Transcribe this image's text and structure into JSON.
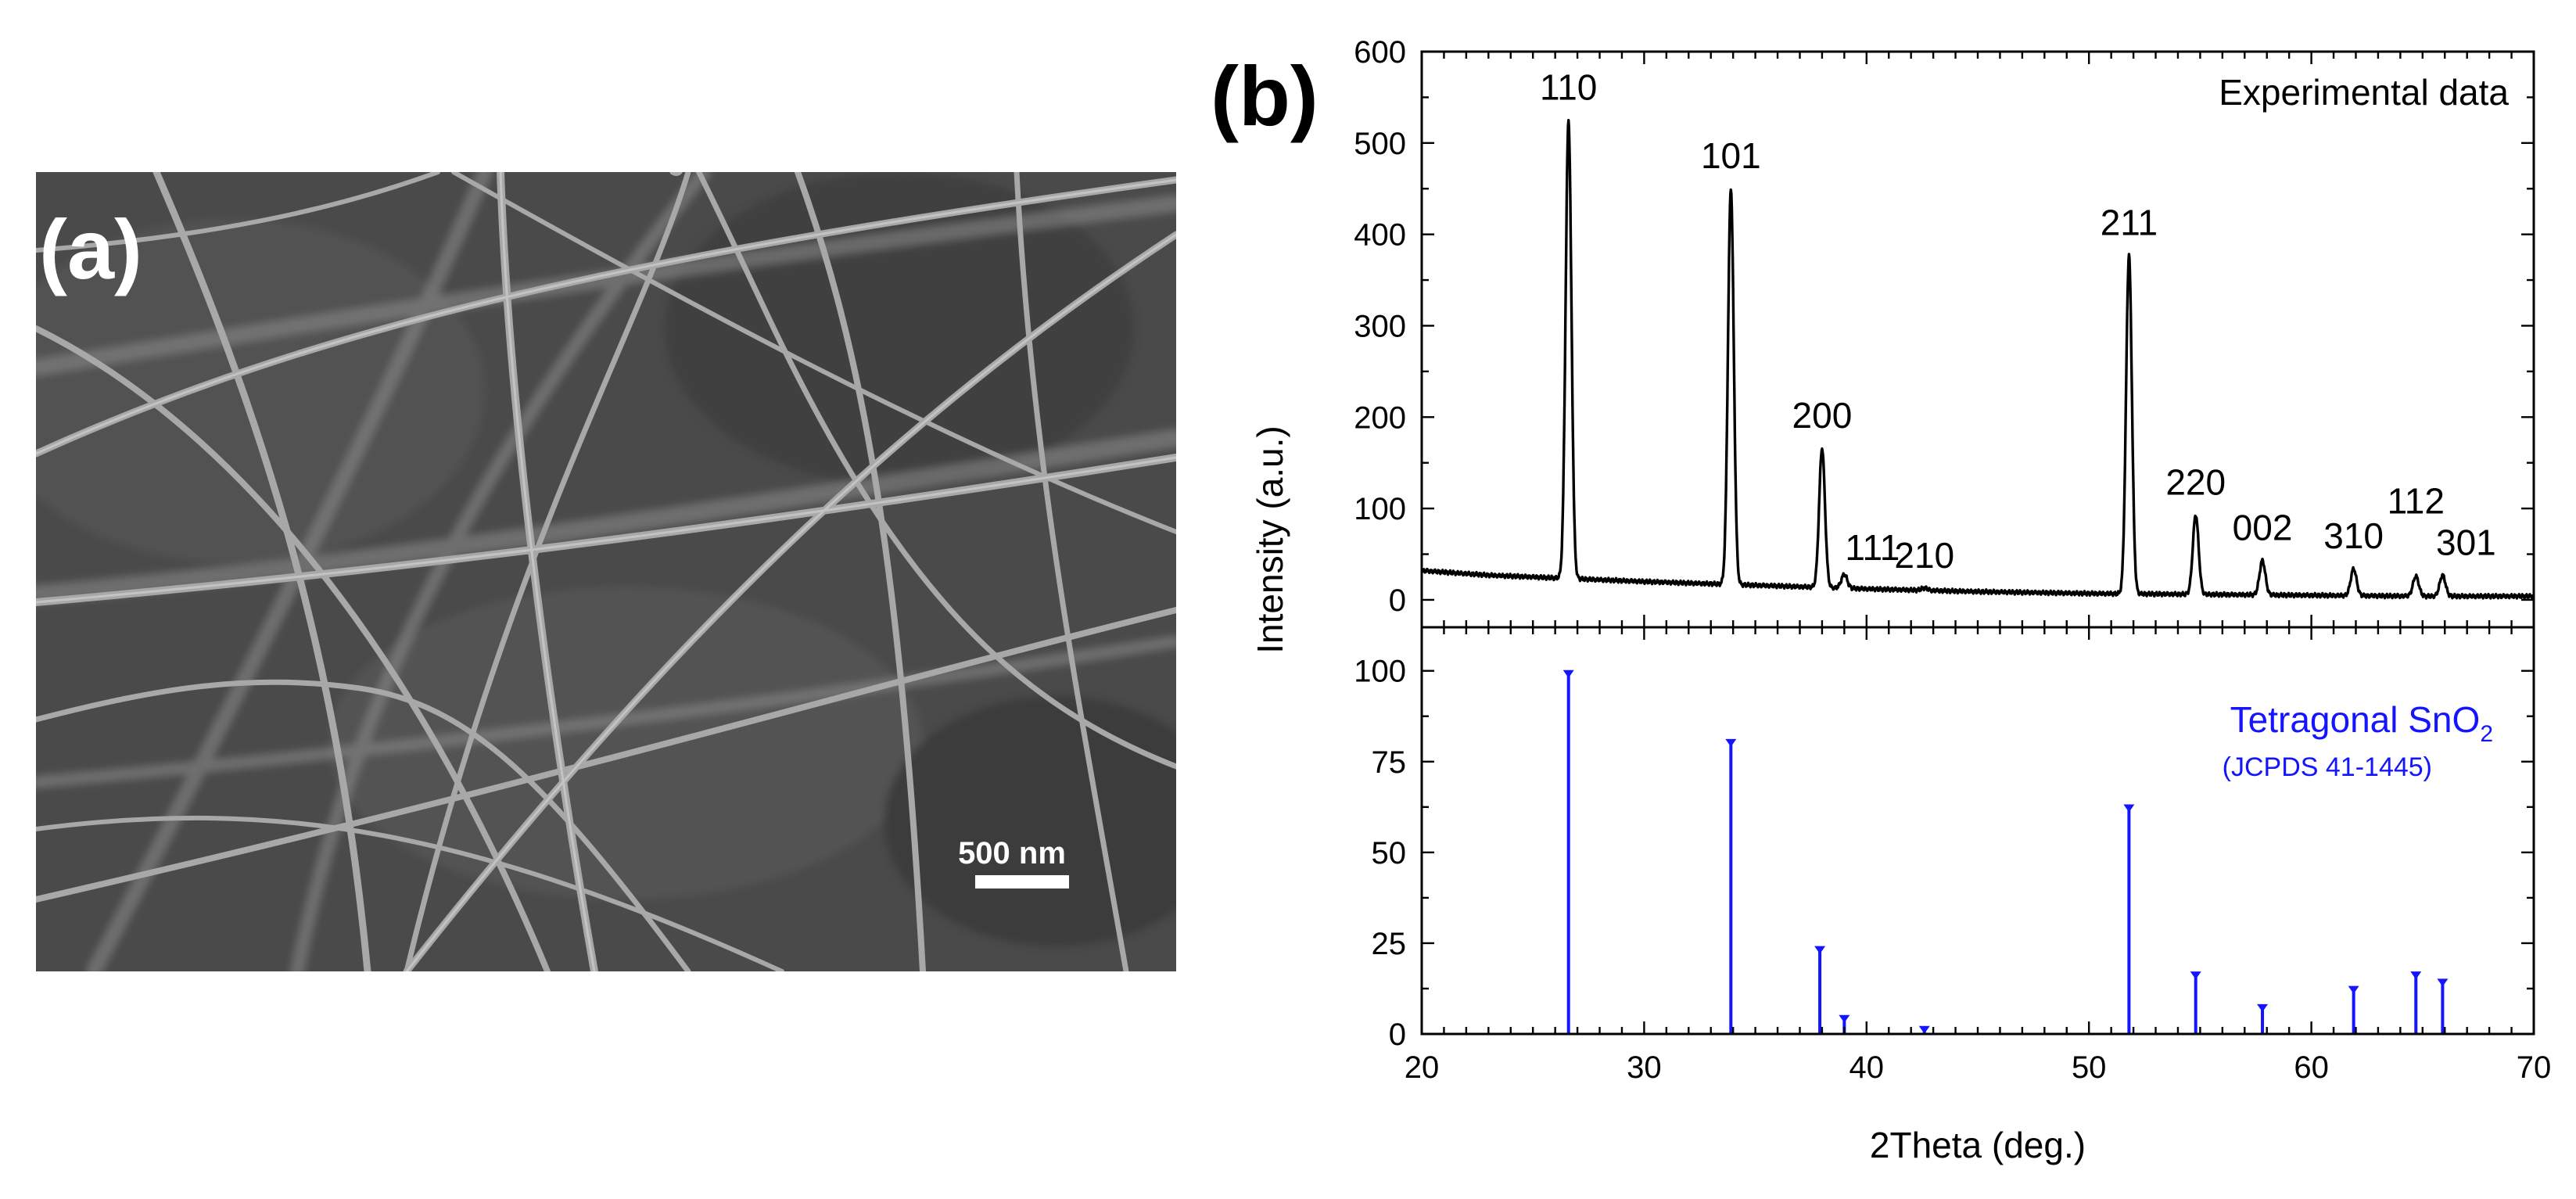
{
  "panel_a": {
    "label": "(a)",
    "scale_bar_label": "500 nm"
  },
  "panel_b": {
    "label": "(b)"
  },
  "chart_data": [
    {
      "type": "line",
      "panel": "top",
      "legend": "Experimental data",
      "ylabel": "Intensity (a.u.)",
      "xlim": [
        20,
        70
      ],
      "ylim": [
        -30,
        600
      ],
      "x_ticks": [
        20,
        30,
        40,
        50,
        60,
        70
      ],
      "y_ticks": [
        0,
        100,
        200,
        300,
        400,
        500,
        600
      ],
      "peaks": [
        {
          "x": 26.6,
          "y": 525,
          "label": "110"
        },
        {
          "x": 33.9,
          "y": 450,
          "label": "101"
        },
        {
          "x": 38.0,
          "y": 166,
          "label": "200"
        },
        {
          "x": 39.0,
          "y": 28,
          "label": "111"
        },
        {
          "x": 42.6,
          "y": 13,
          "label": "210"
        },
        {
          "x": 51.8,
          "y": 377,
          "label": "211"
        },
        {
          "x": 54.8,
          "y": 93,
          "label": "220"
        },
        {
          "x": 57.8,
          "y": 43,
          "label": "002"
        },
        {
          "x": 61.9,
          "y": 34,
          "label": "310"
        },
        {
          "x": 64.7,
          "y": 26,
          "label": "112"
        },
        {
          "x": 65.9,
          "y": 27,
          "label": "301"
        }
      ],
      "baseline": [
        [
          20,
          32
        ],
        [
          23,
          27
        ],
        [
          26,
          24
        ],
        [
          30,
          20
        ],
        [
          35,
          16
        ],
        [
          40,
          12
        ],
        [
          45,
          9
        ],
        [
          50,
          7
        ],
        [
          55,
          6
        ],
        [
          60,
          5
        ],
        [
          65,
          4
        ],
        [
          70,
          4
        ]
      ],
      "color": "#000000"
    },
    {
      "type": "bar",
      "panel": "bottom",
      "legend": "Tetragonal SnO",
      "legend_sub": "2",
      "legend_note": "(JCPDS 41-1445)",
      "xlabel": "2Theta (deg.)",
      "xlim": [
        20,
        70
      ],
      "ylim": [
        0,
        112
      ],
      "x_ticks": [
        20,
        30,
        40,
        50,
        60,
        70
      ],
      "y_ticks": [
        0,
        25,
        50,
        75,
        100
      ],
      "x": [
        26.6,
        33.9,
        37.9,
        39.0,
        42.6,
        51.8,
        54.8,
        57.8,
        61.9,
        64.7,
        65.9
      ],
      "values": [
        100,
        81,
        24,
        5,
        2,
        63,
        17,
        8,
        13,
        17,
        15
      ],
      "color": "#1414ff"
    }
  ]
}
